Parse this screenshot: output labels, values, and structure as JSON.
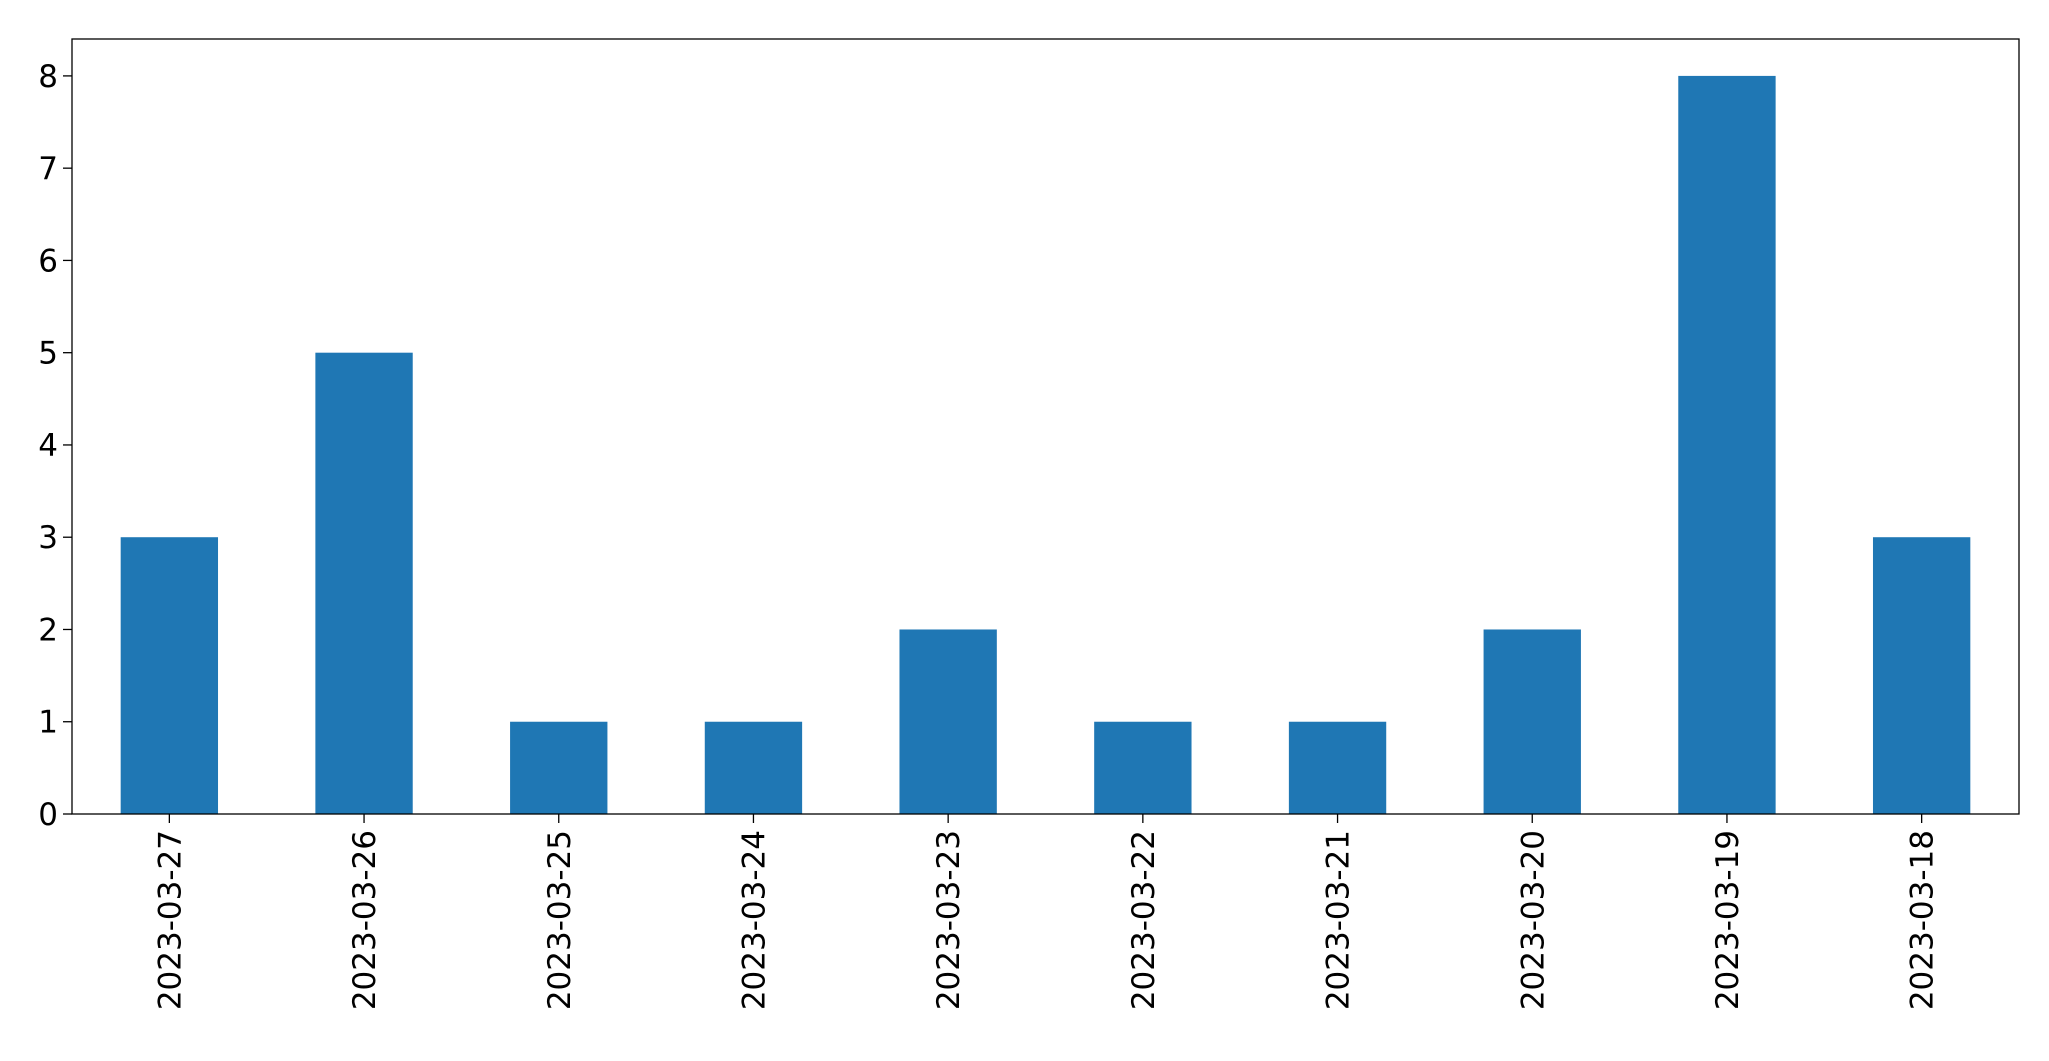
{
  "chart_data": {
    "type": "bar",
    "categories": [
      "2023-03-27",
      "2023-03-26",
      "2023-03-25",
      "2023-03-24",
      "2023-03-23",
      "2023-03-22",
      "2023-03-21",
      "2023-03-20",
      "2023-03-19",
      "2023-03-18"
    ],
    "values": [
      3,
      5,
      1,
      1,
      2,
      1,
      1,
      2,
      8,
      3
    ],
    "color": "#1f77b4",
    "ylim": [
      0,
      8.4
    ],
    "yticks": [
      0,
      1,
      2,
      3,
      4,
      5,
      6,
      7,
      8
    ],
    "grid": false
  }
}
